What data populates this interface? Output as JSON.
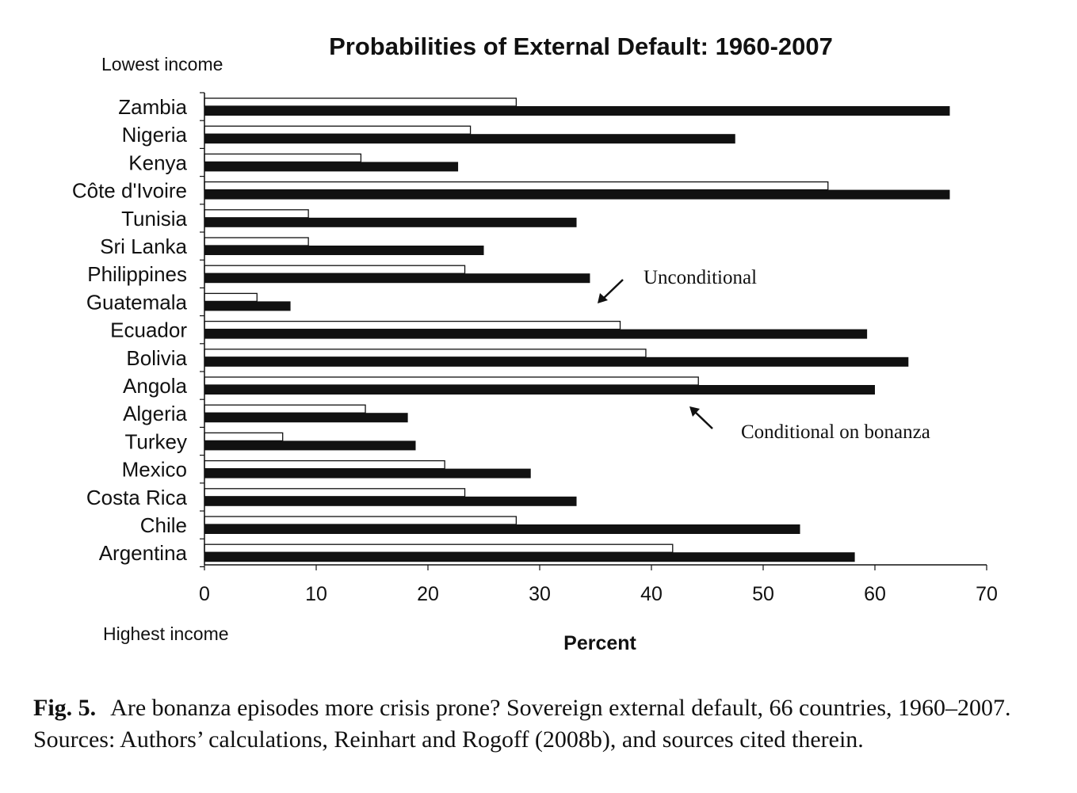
{
  "figure": {
    "label": "Fig. 5.",
    "caption": "Are bonanza episodes more crisis prone? Sovereign external default, 66 countries, 1960–2007. Sources: Authors’ calculations, Reinhart and Rogoff (2008b), and sources cited therein."
  },
  "chart_data": {
    "type": "bar",
    "orientation": "horizontal",
    "title": "Probabilities of External Default: 1960-2007",
    "xlabel": "Percent",
    "ylabel": "",
    "top_note": "Lowest income",
    "bottom_note": "Highest income",
    "xlim": [
      0,
      70
    ],
    "xticks": [
      0,
      10,
      20,
      30,
      40,
      50,
      60,
      70
    ],
    "grid": false,
    "categories": [
      "Zambia",
      "Nigeria",
      "Kenya",
      "Côte d'Ivoire",
      "Tunisia",
      "Sri Lanka",
      "Philippines",
      "Guatemala",
      "Ecuador",
      "Bolivia",
      "Angola",
      "Algeria",
      "Turkey",
      "Mexico",
      "Costa Rica",
      "Chile",
      "Argentina"
    ],
    "series": [
      {
        "name": "Unconditional",
        "color": "#ffffff",
        "values": [
          27.9,
          23.8,
          14.0,
          55.8,
          9.3,
          9.3,
          23.3,
          4.7,
          37.2,
          39.5,
          44.2,
          14.4,
          7.0,
          21.5,
          23.3,
          27.9,
          41.9
        ]
      },
      {
        "name": "Conditional on bonanza",
        "color": "#111111",
        "values": [
          66.7,
          47.5,
          22.7,
          66.7,
          33.3,
          25.0,
          34.5,
          7.7,
          59.3,
          63.0,
          60.0,
          18.2,
          18.9,
          29.2,
          33.3,
          53.3,
          58.2
        ]
      }
    ]
  }
}
